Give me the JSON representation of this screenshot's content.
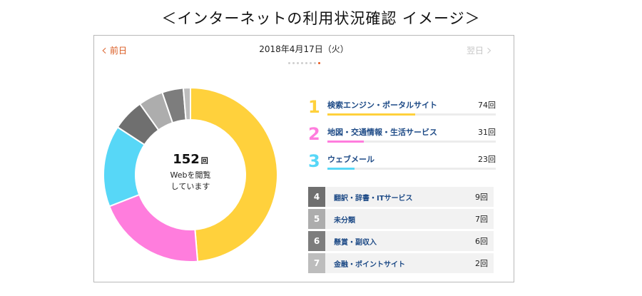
{
  "title": "＜インターネットの利用状況確認 イメージ＞",
  "nav": {
    "prev_label": "前日",
    "next_label": "翌日",
    "date": "2018年4月17日（火）"
  },
  "page_indicator": {
    "count": 8,
    "active_index": 7
  },
  "summary": {
    "count": "152",
    "unit": "回",
    "line1": "Webを閲覧",
    "line2": "しています"
  },
  "colors": {
    "accent": "#e8581d",
    "link": "#1d4a86"
  },
  "chart_data": {
    "type": "pie",
    "donut": true,
    "total": 152,
    "categories": [
      "検索エンジン・ポータルサイト",
      "地図・交通情報・生活サービス",
      "ウェブメール",
      "翻訳・辞書・ITサービス",
      "未分類",
      "懸賞・副収入",
      "金融・ポイントサイト"
    ],
    "values": [
      74,
      31,
      23,
      9,
      7,
      6,
      2
    ],
    "colors": [
      "#ffd13c",
      "#ff7ddd",
      "#57d7f7",
      "#6f6f6f",
      "#adadad",
      "#7d7d7d",
      "#bdbdbd"
    ]
  },
  "top_items": [
    {
      "rank": "1",
      "name": "検索エンジン・ポータルサイト",
      "count": "74回",
      "value": 74,
      "color": "#ffd13c"
    },
    {
      "rank": "2",
      "name": "地図・交通情報・生活サービス",
      "count": "31回",
      "value": 31,
      "color": "#ff7ddd"
    },
    {
      "rank": "3",
      "name": "ウェブメール",
      "count": "23回",
      "value": 23,
      "color": "#57d7f7"
    }
  ],
  "other_items": [
    {
      "rank": "4",
      "name": "翻訳・辞書・ITサービス",
      "count": "9回",
      "color": "#6f6f6f"
    },
    {
      "rank": "5",
      "name": "未分類",
      "count": "7回",
      "color": "#adadad"
    },
    {
      "rank": "6",
      "name": "懸賞・副収入",
      "count": "6回",
      "color": "#7d7d7d"
    },
    {
      "rank": "7",
      "name": "金融・ポイントサイト",
      "count": "2回",
      "color": "#bdbdbd"
    }
  ]
}
